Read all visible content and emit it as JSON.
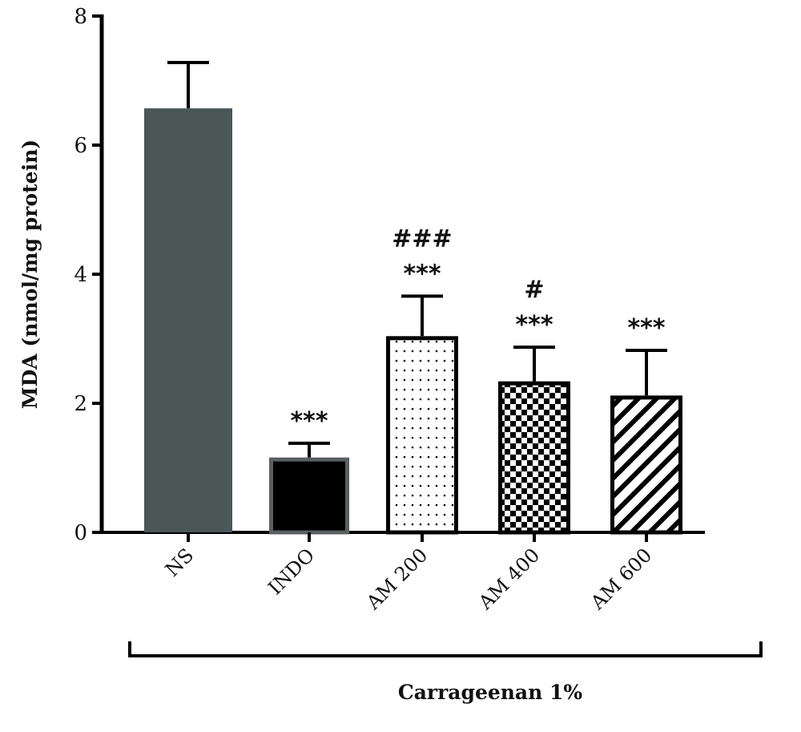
{
  "chart_data": {
    "type": "bar",
    "ylabel": "MDA (nmol/mg protein)",
    "xlabel": "Carrageenan 1%",
    "categories": [
      "NS",
      "INDO",
      "AM 200",
      "AM 400",
      "AM 600"
    ],
    "values": [
      6.57,
      1.16,
      3.04,
      2.34,
      2.12
    ],
    "error_upper": [
      7.28,
      1.38,
      3.66,
      2.87,
      2.82
    ],
    "annotations": [
      "",
      "***",
      "###\n***",
      "#\n***",
      "***"
    ],
    "fills": [
      "solid-gray",
      "solid-black",
      "dots",
      "checker",
      "diagonal-stripes"
    ],
    "colors": {
      "NS": "#4b5657",
      "INDO": "#000000",
      "INDO_border": "#5a5f5f"
    },
    "ylim": [
      0,
      8
    ],
    "yticks": [
      0,
      2,
      4,
      6,
      8
    ],
    "grid": false
  }
}
